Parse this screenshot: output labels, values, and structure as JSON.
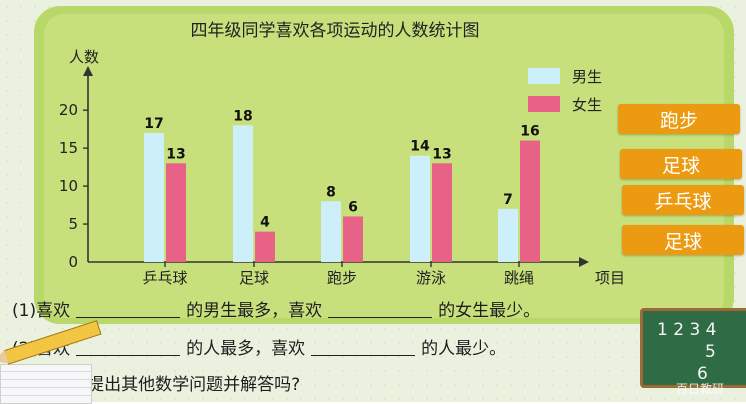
{
  "chart_data": {
    "type": "bar",
    "title": "四年级同学喜欢各项运动的人数统计图",
    "ylabel": "人数",
    "xlabel": "项目",
    "categories": [
      "乒乓球",
      "足球",
      "跑步",
      "游泳",
      "跳绳"
    ],
    "series": [
      {
        "name": "男生",
        "values": [
          17,
          18,
          8,
          14,
          7
        ],
        "color": "#cceffa"
      },
      {
        "name": "女生",
        "values": [
          13,
          4,
          6,
          13,
          16
        ],
        "color": "#e86287"
      }
    ],
    "yticks": [
      0,
      5,
      10,
      15,
      20
    ],
    "ylim": [
      0,
      22
    ],
    "grid": false,
    "legend": "top-right"
  },
  "answer_labels": [
    "跑步",
    "足球",
    "乒乓球",
    "足球"
  ],
  "questions": [
    {
      "prefix": "(1)喜欢",
      "mid": "的男生最多，喜欢",
      "suffix": "的女生最少。"
    },
    {
      "prefix": "(2)喜欢",
      "mid": "的人最多，喜欢",
      "suffix": "的人最少。"
    },
    {
      "text": "(3)你还能提出其他数学问题并解答吗?"
    }
  ],
  "chalkboard": {
    "line1": "1 2 3 4",
    "line2": "5",
    "line3": "6"
  },
  "watermark": "百日教研",
  "colors": {
    "button": "#eb9a12",
    "board": "#c7e07c"
  }
}
